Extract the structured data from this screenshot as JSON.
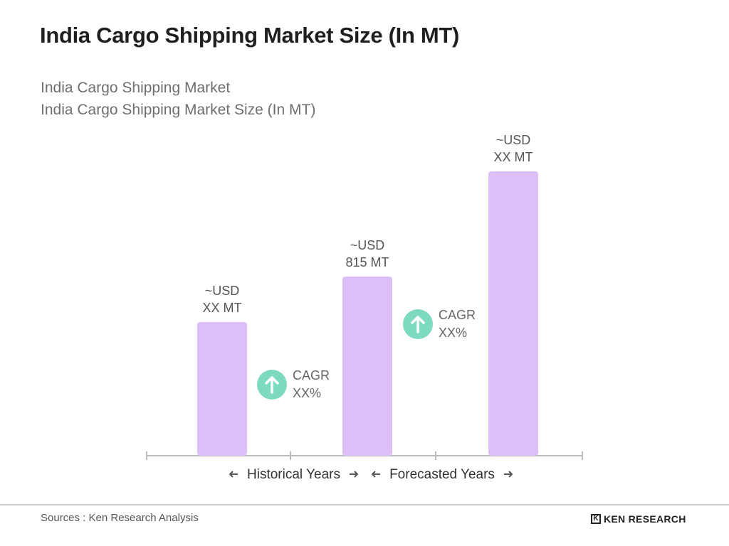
{
  "header": {
    "title": "India Cargo Shipping Market Size (In MT)",
    "subtitle_line1": "India Cargo Shipping Market",
    "subtitle_line2": "India Cargo Shipping Market Size (In MT)"
  },
  "chart_data": {
    "type": "bar",
    "bars": [
      {
        "label_line1": "~USD",
        "label_line2": "XX MT",
        "relative_height": 0.47
      },
      {
        "label_line1": "~USD",
        "label_line2": "815 MT",
        "relative_height": 0.63
      },
      {
        "label_line1": "~USD",
        "label_line2": "XX MT",
        "relative_height": 1.0
      }
    ],
    "cagr_badges": [
      {
        "line1": "CAGR",
        "line2": "XX%"
      },
      {
        "line1": "CAGR",
        "line2": "XX%"
      }
    ],
    "periods": [
      {
        "label": "Historical Years"
      },
      {
        "label": "Forecasted Years"
      }
    ],
    "grid": false,
    "legend": "none"
  },
  "colors": {
    "bar": "#dcbff7",
    "cagr_circle": "#7dd9c0",
    "axis": "#bbbbbb",
    "period_arrow": "#555555"
  },
  "icons": {
    "cagr": "arrow-up-icon",
    "period_left": "arrow-left-icon",
    "period_right": "arrow-right-icon"
  },
  "footer": {
    "source": "Sources : Ken Research Analysis",
    "brand_mark": "K",
    "brand": "KEN RESEARCH"
  }
}
